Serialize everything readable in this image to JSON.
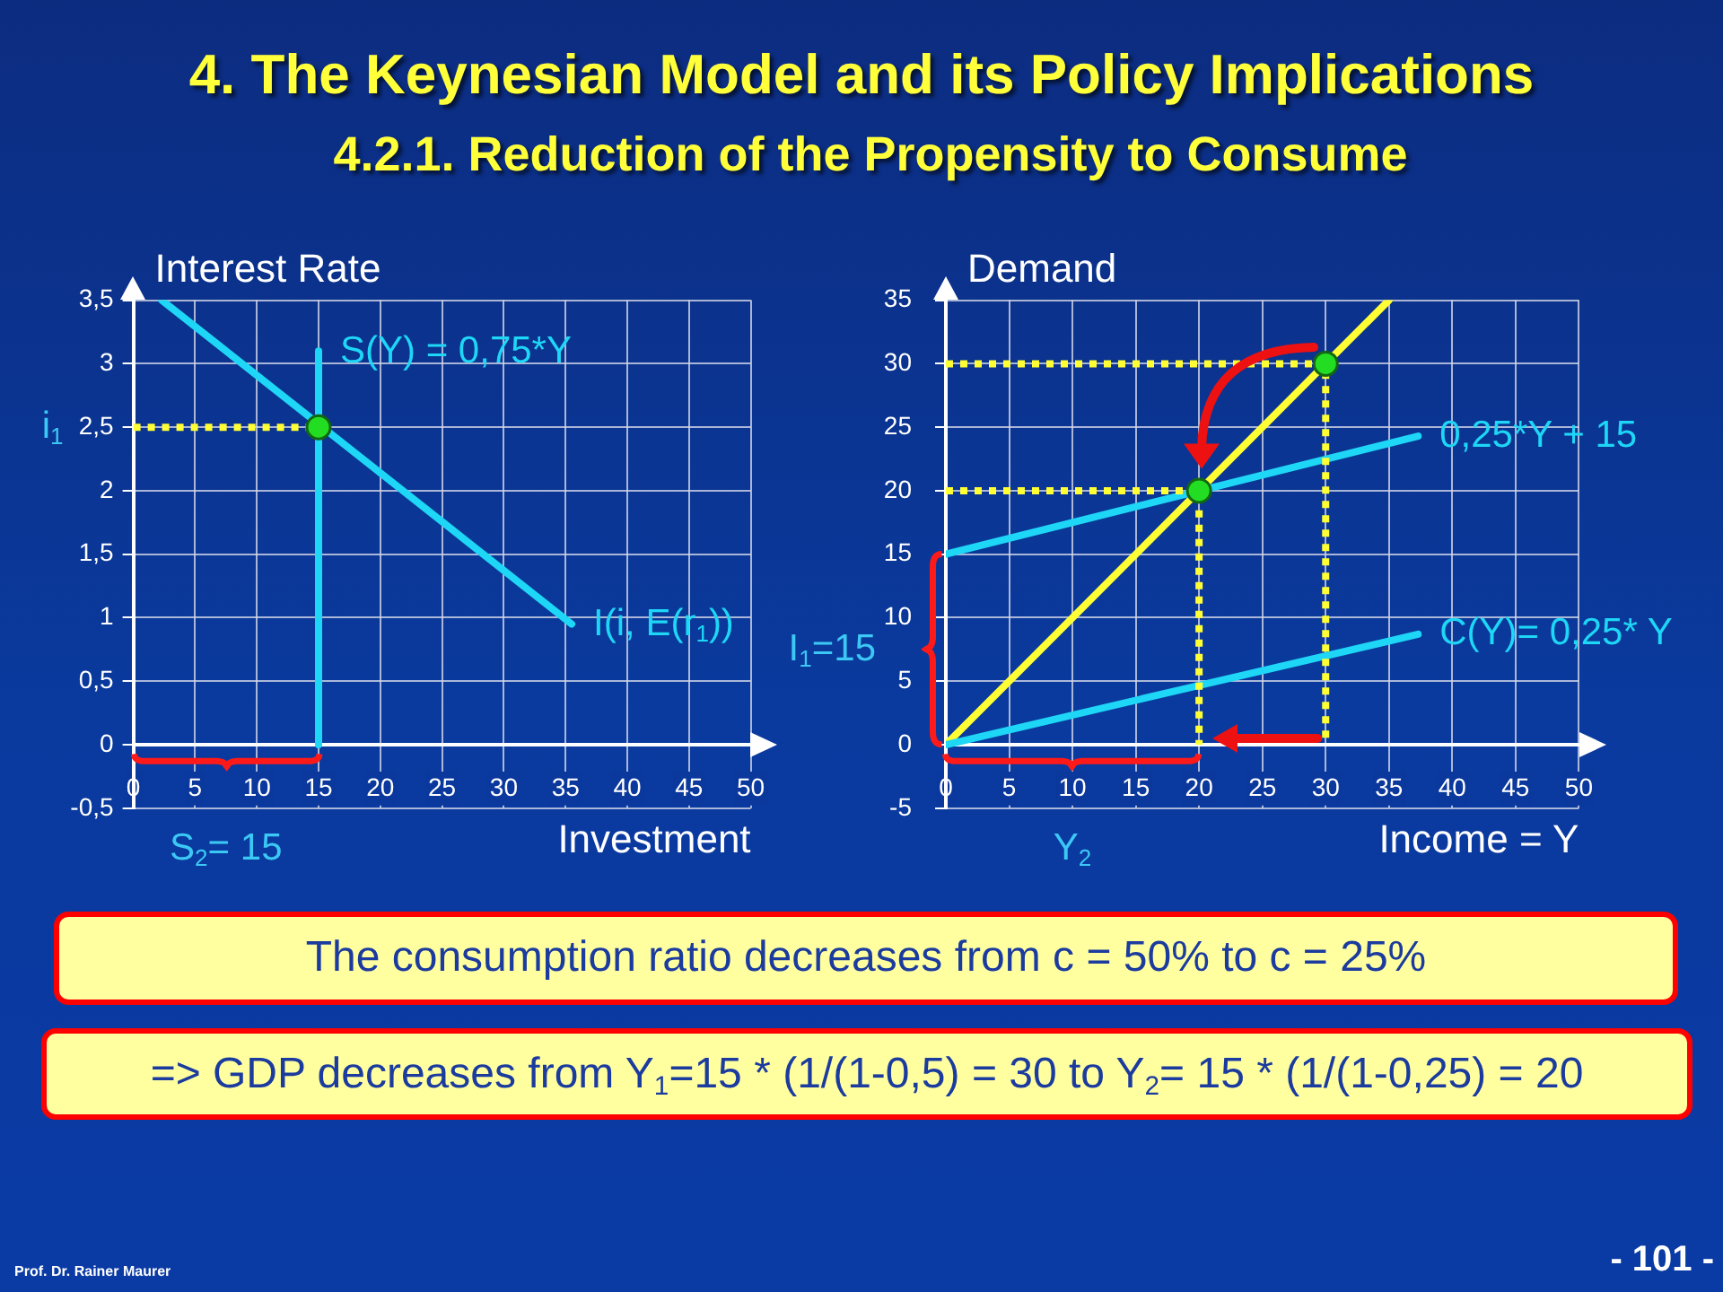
{
  "chart_data": [
    {
      "type": "other",
      "title": "4. The Keynesian Model and its Policy Implications",
      "subtitle": "4.2.1. Reduction of the Propensity to Consume"
    },
    {
      "type": "line",
      "xlabel": "Investment",
      "ylabel": "Interest Rate",
      "xlim": [
        0,
        50
      ],
      "xticks": [
        0,
        5,
        10,
        15,
        20,
        25,
        30,
        35,
        40,
        45,
        50
      ],
      "ylim": [
        -0.5,
        3.5
      ],
      "yticks": [
        {
          "value": -0.5,
          "label": "-0,5"
        },
        0,
        {
          "value": 0.5,
          "label": "0,5"
        },
        1,
        {
          "value": 1.5,
          "label": "1,5"
        },
        2,
        {
          "value": 2.5,
          "label": "2,5"
        },
        3,
        {
          "value": 3.5,
          "label": "3,5"
        }
      ],
      "grid": true,
      "marker": "none",
      "series": [
        {
          "name": "I(i, E(r$_{1}$))",
          "color": "#1ed6f5",
          "x": [
            2.3,
            35.5
          ],
          "values": [
            3.5,
            0.95
          ]
        },
        {
          "name": "S(Y) = 0,75*Y",
          "color": "#1ed6f5",
          "x": [
            15,
            15
          ],
          "values": [
            0,
            3.1
          ]
        },
        {
          "color": "#ffff33",
          "x": [
            0,
            15
          ],
          "values": [
            2.5,
            2.5
          ],
          "line_style": "dotted"
        },
        {
          "type": "scatter",
          "color": "#22dd22",
          "x": [
            15
          ],
          "values": [
            2.5
          ],
          "marker": "circle"
        }
      ],
      "annotations": [
        {
          "text": "i$_{1}$",
          "x": 0,
          "y": 2.5
        },
        "S$_{2}$= 15"
      ]
    },
    {
      "type": "line",
      "xlabel": "Income = Y",
      "ylabel": "Demand",
      "xlim": [
        0,
        50
      ],
      "xticks": [
        0,
        5,
        10,
        15,
        20,
        25,
        30,
        35,
        40,
        45,
        50
      ],
      "ylim": [
        -5,
        35
      ],
      "yticks": [
        -5,
        0,
        5,
        10,
        15,
        20,
        25,
        30,
        35
      ],
      "grid": true,
      "marker": "none",
      "series": [
        {
          "color": "#ffff33",
          "x": [
            0,
            35
          ],
          "values": [
            0,
            35
          ]
        },
        {
          "name": "0,25*Y + 15",
          "color": "#1ed6f5",
          "x": [
            0,
            37.3
          ],
          "values": [
            15,
            24.3
          ]
        },
        {
          "name": "C(Y)= 0,25* Y",
          "color": "#1ed6f5",
          "x": [
            0,
            37.3
          ],
          "values": [
            0,
            8.7
          ]
        },
        {
          "color": "#ffff33",
          "x": [
            0,
            30,
            30
          ],
          "values": [
            30,
            30,
            0
          ],
          "line_style": "dotted"
        },
        {
          "color": "#ffff33",
          "x": [
            0,
            20,
            20
          ],
          "values": [
            20,
            20,
            0
          ],
          "line_style": "dotted"
        },
        {
          "type": "scatter",
          "color": "#22dd22",
          "x": [
            20,
            30
          ],
          "values": [
            20,
            30
          ],
          "marker": "circle"
        }
      ],
      "annotations": [
        {
          "text": "I$_{1}$=15",
          "x": 0,
          "y": 15
        },
        "Y$_{2}$"
      ]
    },
    {
      "type": "other",
      "annotations": [
        "The consumption ratio decreases from c = 50% to c = 25%",
        "=> GDP decreases from Y$_{1}$=15 * (1/(1-0,5) = 30 to Y$_{2}$= 15 * (1/(1-0,25) = 20",
        "Prof. Dr. Rainer Maurer",
        "- 101 -"
      ]
    }
  ]
}
